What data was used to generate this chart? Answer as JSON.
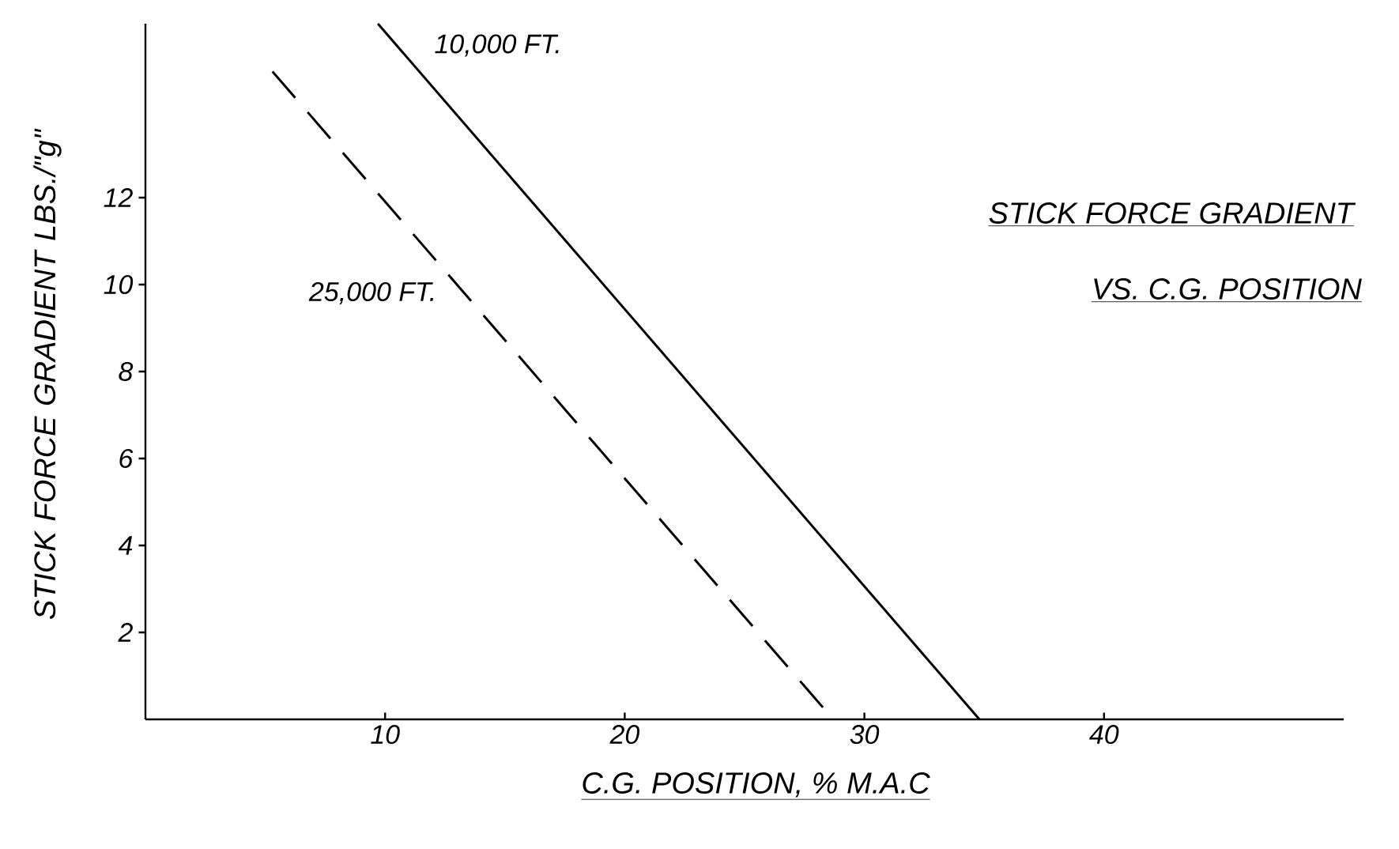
{
  "chart_data": {
    "type": "line",
    "title": "STICK FORCE GRADIENT",
    "subtitle": "VS. C.G. POSITION",
    "xlabel": "C.G. POSITION, % M.A.C",
    "ylabel": "STICK FORCE GRADIENT LBS./\"g\"",
    "xlim": [
      0,
      50
    ],
    "ylim": [
      0,
      16
    ],
    "xticks": [
      10,
      20,
      30,
      40
    ],
    "yticks": [
      2,
      4,
      6,
      8,
      10,
      12
    ],
    "grid": false,
    "marker": "none",
    "series": [
      {
        "color": "#000000",
        "line_style": "solid",
        "x": [
          9.7,
          34.8
        ],
        "values": [
          16,
          0
        ]
      },
      {
        "color": "#000000",
        "line_style": "dashed",
        "x": [
          5.3,
          28.7
        ],
        "values": [
          14.9,
          0
        ]
      }
    ],
    "annotations": [
      {
        "text": "10,000 FT.",
        "x": 10.5,
        "y": 15.5
      },
      {
        "text": "25,000 FT.",
        "x": 13.3,
        "y": 9.8
      }
    ]
  }
}
